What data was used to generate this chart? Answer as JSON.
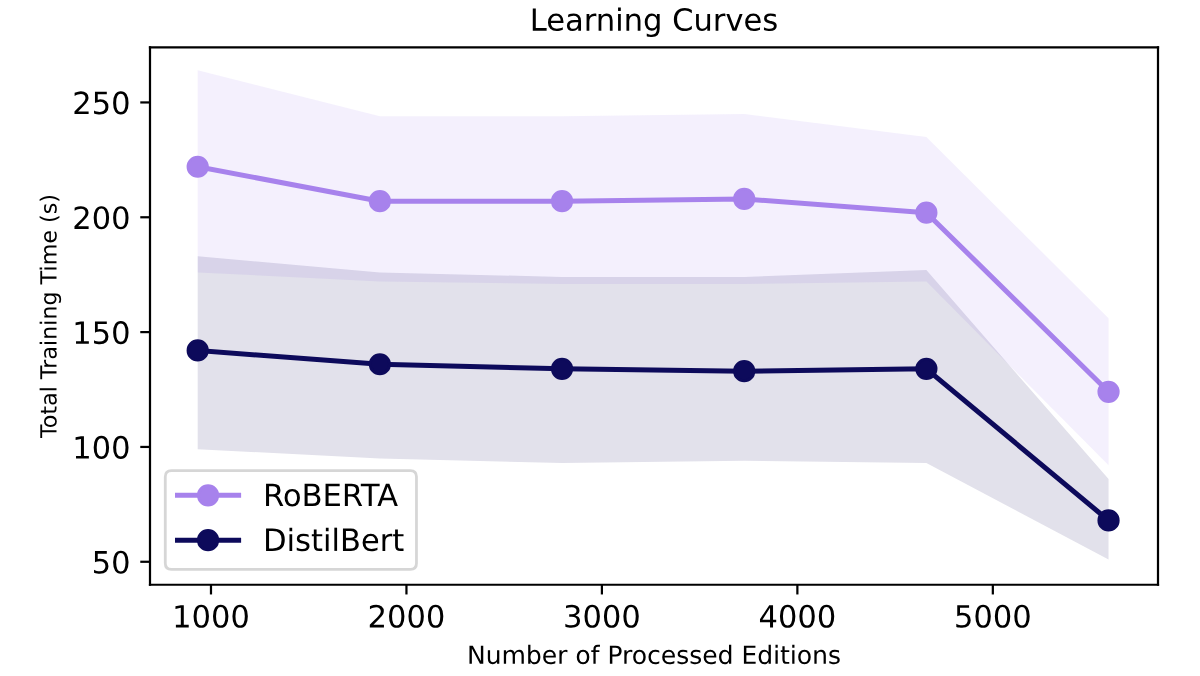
{
  "chart_data": {
    "type": "line",
    "title": "Learning Curves",
    "xlabel": "Number of Processed Editions",
    "ylabel": "Total Training Time (s)",
    "x": [
      932,
      1864,
      2796,
      3728,
      4660,
      5592
    ],
    "series": [
      {
        "name": "RoBERTA",
        "color": "#a782ec",
        "values": [
          222,
          207,
          207,
          208,
          202,
          124
        ],
        "lower": [
          176,
          172,
          171,
          171,
          172,
          92
        ],
        "upper": [
          264,
          244,
          244,
          245,
          235,
          156
        ]
      },
      {
        "name": "DistilBert",
        "color": "#0d0a5b",
        "values": [
          142,
          136,
          134,
          133,
          134,
          68
        ],
        "lower": [
          99,
          95,
          93,
          94,
          93,
          51
        ],
        "upper": [
          183,
          176,
          174,
          174,
          177,
          86
        ]
      }
    ],
    "xlim": [
      688,
      5845
    ],
    "ylim": [
      40,
      274
    ],
    "xticks": [
      1000,
      2000,
      3000,
      4000,
      5000
    ],
    "yticks": [
      50,
      100,
      150,
      200,
      250
    ],
    "marker": "circle",
    "line_style": "solid",
    "legend": "bottom left",
    "grid": false
  }
}
